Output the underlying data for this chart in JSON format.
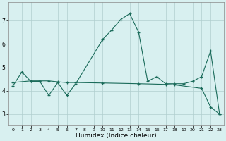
{
  "xlabel": "Humidex (Indice chaleur)",
  "x_line1": [
    0,
    1,
    2,
    3,
    4,
    5,
    6,
    7,
    10,
    11,
    12,
    13,
    14,
    15,
    16,
    17,
    18,
    19,
    20,
    21,
    22,
    23
  ],
  "y_line1": [
    4.2,
    4.8,
    4.4,
    4.4,
    3.8,
    4.35,
    3.8,
    4.3,
    6.2,
    6.6,
    7.05,
    7.3,
    6.5,
    4.4,
    4.6,
    4.3,
    4.3,
    4.3,
    4.4,
    4.6,
    5.7,
    3.0
  ],
  "x_line2": [
    0,
    2,
    3,
    4,
    5,
    6,
    7,
    10,
    14,
    17,
    18,
    21,
    22,
    23
  ],
  "y_line2": [
    4.35,
    4.42,
    4.42,
    4.42,
    4.38,
    4.35,
    4.35,
    4.33,
    4.3,
    4.27,
    4.25,
    4.1,
    3.3,
    3.0
  ],
  "line_color": "#1a6b5a",
  "bg_color": "#d8f0f0",
  "grid_color": "#b0cece",
  "ylim": [
    2.5,
    7.8
  ],
  "xlim": [
    -0.5,
    23.5
  ],
  "yticks": [
    3,
    4,
    5,
    6,
    7
  ],
  "xticks": [
    0,
    1,
    2,
    3,
    4,
    5,
    6,
    7,
    8,
    9,
    10,
    11,
    12,
    13,
    14,
    15,
    16,
    17,
    18,
    19,
    20,
    21,
    22,
    23
  ]
}
